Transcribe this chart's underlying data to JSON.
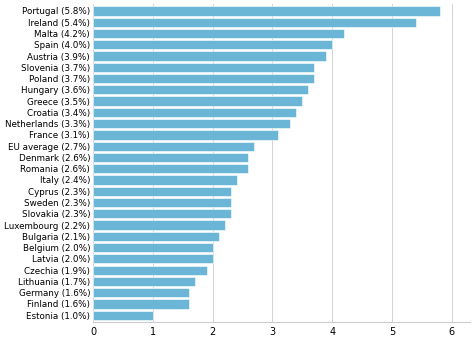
{
  "categories": [
    "Portugal (5.8%)",
    "Ireland (5.4%)",
    "Malta (4.2%)",
    "Spain (4.0%)",
    "Austria (3.9%)",
    "Slovenia (3.7%)",
    "Poland (3.7%)",
    "Hungary (3.6%)",
    "Greece (3.5%)",
    "Croatia (3.4%)",
    "Netherlands (3.3%)",
    "France (3.1%)",
    "EU average (2.7%)",
    "Denmark (2.6%)",
    "Romania (2.6%)",
    "Italy (2.4%)",
    "Cyprus (2.3%)",
    "Sweden (2.3%)",
    "Slovakia (2.3%)",
    "Luxembourg (2.2%)",
    "Bulgaria (2.1%)",
    "Belgium (2.0%)",
    "Latvia (2.0%)",
    "Czechia (1.9%)",
    "Lithuania (1.7%)",
    "Germany (1.6%)",
    "Finland (1.6%)",
    "Estonia (1.0%)"
  ],
  "values": [
    5.8,
    5.4,
    4.2,
    4.0,
    3.9,
    3.7,
    3.7,
    3.6,
    3.5,
    3.4,
    3.3,
    3.1,
    2.7,
    2.6,
    2.6,
    2.4,
    2.3,
    2.3,
    2.3,
    2.2,
    2.1,
    2.0,
    2.0,
    1.9,
    1.7,
    1.6,
    1.6,
    1.0
  ],
  "bar_color": "#6bb5d6",
  "background_color": "#ffffff",
  "xlim": [
    0,
    6.3
  ],
  "xticks": [
    0,
    1,
    2,
    3,
    4,
    5,
    6
  ],
  "grid_color": "#cccccc",
  "bar_height": 0.82,
  "font_size": 6.3,
  "tick_font_size": 7.0
}
